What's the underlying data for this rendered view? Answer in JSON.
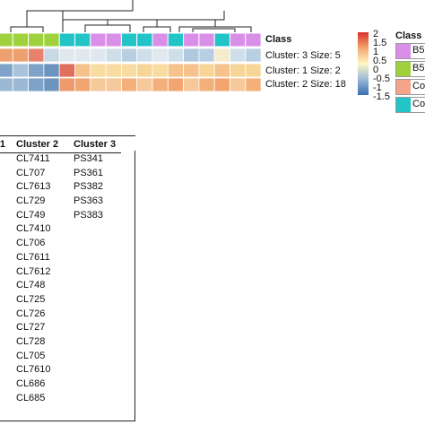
{
  "heatmap": {
    "class_row_label": "Class",
    "row_labels": [
      "Cluster: 3 Size: 5",
      "Cluster: 1 Size: 2",
      "Cluster: 2 Size: 18"
    ],
    "class_colors": [
      "#9ed13c",
      "#9ed13c",
      "#9ed13c",
      "#9ed13c",
      "#22c4c8",
      "#22c4c8",
      "#d98ee8",
      "#d98ee8",
      "#22c4c8",
      "#22c4c8",
      "#d98ee8",
      "#22c4c8",
      "#d98ee8",
      "#d98ee8",
      "#22c4c8",
      "#d98ee8",
      "#d98ee8"
    ],
    "rows": [
      [
        "#eea06e",
        "#eea06e",
        "#e9826a",
        "#c8d8e4",
        "#dfe8ee",
        "#dfe8ee",
        "#dfe8ee",
        "#cfdfea",
        "#b8cfe2",
        "#cfdfea",
        "#dfe8ee",
        "#cfdfea",
        "#aec8de",
        "#b8cfe2",
        "#f6eccc",
        "#cfdfea",
        "#b8cfe2"
      ],
      [
        "#7fa3c8",
        "#a9c3db",
        "#7fa3c8",
        "#6d93bf",
        "#e06f5e",
        "#f4c28a",
        "#f9dca0",
        "#f9dca0",
        "#f9dca0",
        "#f7d596",
        "#f9dca0",
        "#f4c28a",
        "#f4c28a",
        "#f7d596",
        "#f4c28a",
        "#f7d596",
        "#f7d596"
      ],
      [
        "#9bb8d5",
        "#9bb8d5",
        "#7fa3c8",
        "#6d93bf",
        "#ee9a6c",
        "#f3a571",
        "#f6c99b",
        "#f6c99b",
        "#f3b07b",
        "#f6c99b",
        "#f3b07b",
        "#f3a571",
        "#f6c99b",
        "#f3b07b",
        "#f3a571",
        "#f6c99b",
        "#f3b07b"
      ]
    ],
    "scale_ticks": [
      "2",
      "1.5",
      "1",
      "0.5",
      "0",
      "-0.5",
      "-1",
      "-1.5"
    ],
    "scale_colors": [
      "#d7302a",
      "#f4a66e",
      "#fef7c2",
      "#9ab8d8",
      "#3a6eb0"
    ]
  },
  "legend": {
    "title": "Class",
    "items": [
      {
        "label": "B5",
        "color": "#d98ee8"
      },
      {
        "label": "B5",
        "color": "#9ed13c"
      },
      {
        "label": "Co",
        "color": "#f4a48a"
      },
      {
        "label": "Co",
        "color": "#22c4c8"
      }
    ]
  },
  "table": {
    "headers": [
      "1",
      "Cluster 2",
      "Cluster 3"
    ],
    "rows": [
      [
        "",
        "CL7411",
        "PS341"
      ],
      [
        "",
        "CL707",
        "PS361"
      ],
      [
        "",
        "CL7613",
        "PS382"
      ],
      [
        "",
        "CL729",
        "PS363"
      ],
      [
        "",
        "CL749",
        "PS383"
      ],
      [
        "",
        "CL7410",
        ""
      ],
      [
        "",
        "CL706",
        ""
      ],
      [
        "",
        "CL7611",
        ""
      ],
      [
        "",
        "CL7612",
        ""
      ],
      [
        "",
        "CL748",
        ""
      ],
      [
        "",
        "CL725",
        ""
      ],
      [
        "",
        "CL726",
        ""
      ],
      [
        "",
        "CL727",
        ""
      ],
      [
        "",
        "CL728",
        ""
      ],
      [
        "",
        "CL705",
        ""
      ],
      [
        "",
        "CL7610",
        ""
      ],
      [
        "",
        "CL686",
        ""
      ],
      [
        "",
        "CL685",
        ""
      ]
    ]
  }
}
